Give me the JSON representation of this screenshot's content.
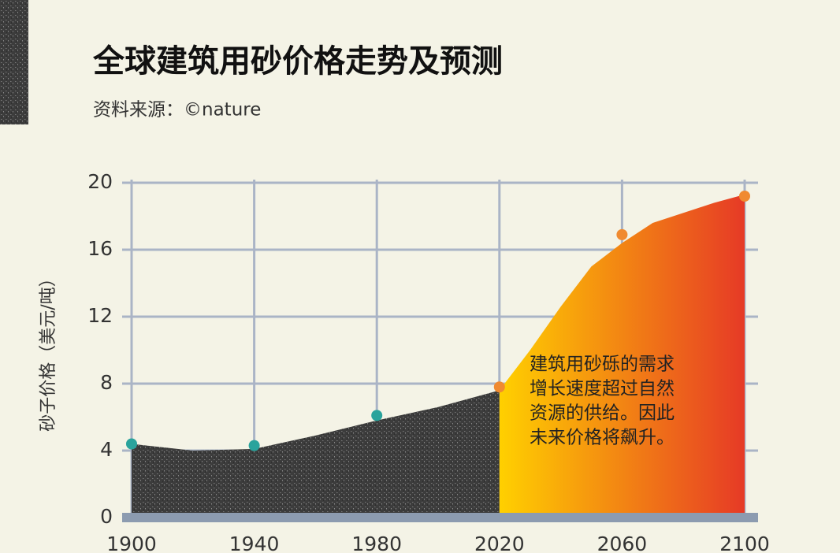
{
  "chart_data": {
    "type": "area",
    "title": "全球建筑用砂价格走势及预测",
    "source": "资料来源：©nature",
    "ylabel": "砂子价格（美元/吨）",
    "annotation": [
      "建筑用砂砾的需求",
      "增长速度超过自然",
      "资源的供给。因此",
      "未来价格将飙升。"
    ],
    "xlim": [
      1900,
      2100
    ],
    "ylim": [
      0,
      20
    ],
    "xticks": [
      1900,
      1940,
      1980,
      2020,
      2060,
      2100
    ],
    "yticks": [
      0,
      4,
      8,
      12,
      16,
      20
    ],
    "grid": true,
    "series": [
      {
        "color": "#3c3c3c",
        "x": [
          1900,
          1910,
          1920,
          1940,
          1960,
          1980,
          2000,
          2020
        ],
        "values": [
          4.4,
          4.2,
          4.0,
          4.1,
          4.9,
          5.8,
          6.6,
          7.6
        ]
      },
      {
        "color": "#ffd000",
        "color_end": "#e63a26",
        "x": [
          2020,
          2030,
          2040,
          2050,
          2060,
          2070,
          2080,
          2090,
          2100
        ],
        "values": [
          7.6,
          10.0,
          12.6,
          15.0,
          16.4,
          17.6,
          18.2,
          18.8,
          19.3
        ]
      }
    ],
    "markers": [
      {
        "color": "#2aa39c",
        "x": [
          1900,
          1940,
          1980
        ],
        "values": [
          4.4,
          4.3,
          6.1
        ]
      },
      {
        "color": "#f08a30",
        "x": [
          2020,
          2060,
          2100
        ],
        "values": [
          7.8,
          16.9,
          19.2
        ]
      }
    ]
  }
}
